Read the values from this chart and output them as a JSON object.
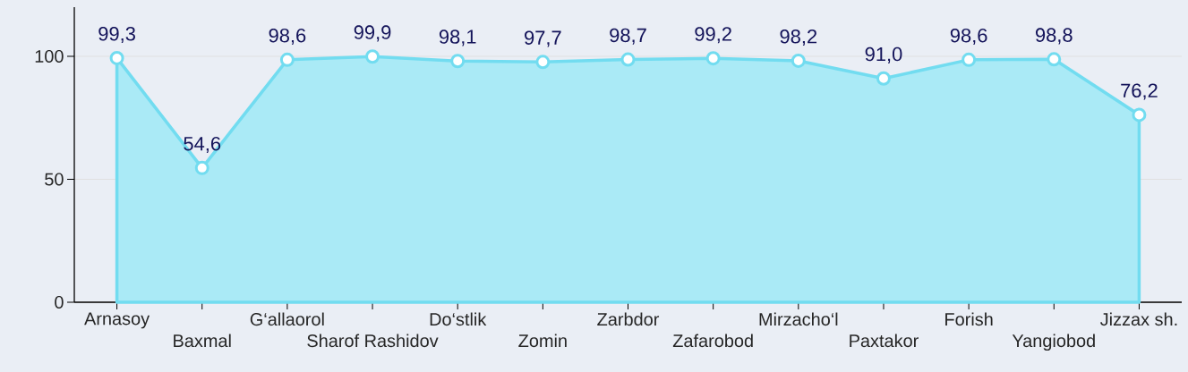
{
  "chart_data": {
    "type": "area",
    "categories": [
      "Arnasoy",
      "Baxmal",
      "G‘allaorol",
      "Sharof Rashidov",
      "Do‘stlik",
      "Zomin",
      "Zarbdor",
      "Zafarobod",
      "Mirzacho‘l",
      "Paxtakor",
      "Forish",
      "Yangiobod",
      "Jizzax sh."
    ],
    "values": [
      99.3,
      54.6,
      98.6,
      99.9,
      98.1,
      97.7,
      98.7,
      99.2,
      98.2,
      91.0,
      98.6,
      98.8,
      76.2
    ],
    "value_labels": [
      "99,3",
      "54,6",
      "98,6",
      "99,9",
      "98,1",
      "97,7",
      "98,7",
      "99,2",
      "98,2",
      "91,0",
      "98,6",
      "98,8",
      "76,2"
    ],
    "color": "#72dcf0",
    "ylim": [
      0,
      120
    ],
    "yticks": [
      0,
      50,
      100
    ],
    "grid": "y",
    "marker": "circle"
  }
}
